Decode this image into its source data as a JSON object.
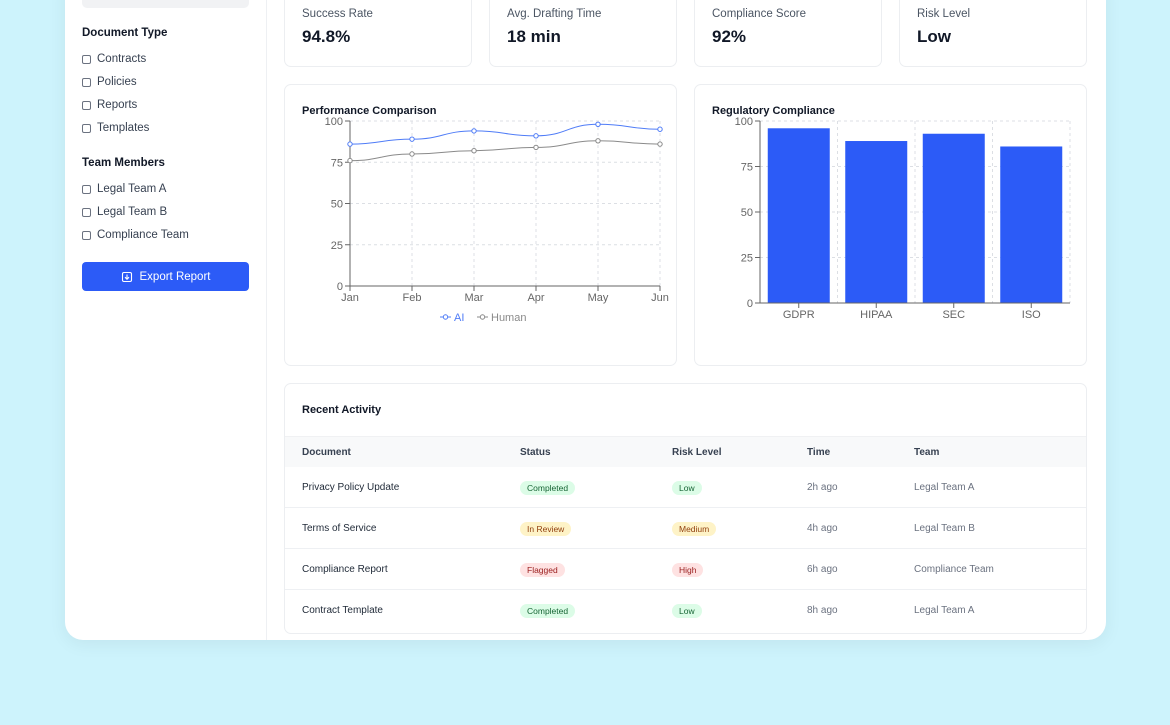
{
  "sidebar": {
    "document_type_title": "Document Type",
    "document_types": [
      "Contracts",
      "Policies",
      "Reports",
      "Templates"
    ],
    "team_members_title": "Team Members",
    "team_members": [
      "Legal Team A",
      "Legal Team B",
      "Compliance Team"
    ],
    "export_label": "Export Report"
  },
  "stats": [
    {
      "label": "Success Rate",
      "value": "94.8%"
    },
    {
      "label": "Avg. Drafting Time",
      "value": "18 min"
    },
    {
      "label": "Compliance Score",
      "value": "92%"
    },
    {
      "label": "Risk Level",
      "value": "Low"
    }
  ],
  "charts": {
    "performance_title": "Performance Comparison",
    "compliance_title": "Regulatory Compliance"
  },
  "chart_data": [
    {
      "type": "line",
      "title": "Performance Comparison",
      "categories": [
        "Jan",
        "Feb",
        "Mar",
        "Apr",
        "May",
        "Jun"
      ],
      "series": [
        {
          "name": "AI",
          "values": [
            86,
            89,
            94,
            91,
            98,
            95
          ],
          "color": "#4f7cf7"
        },
        {
          "name": "Human",
          "values": [
            76,
            80,
            82,
            84,
            88,
            86
          ],
          "color": "#8a8a8a"
        }
      ],
      "ylim": [
        0,
        100
      ],
      "yticks": [
        0,
        25,
        50,
        75,
        100
      ],
      "grid": true,
      "legend": "bottom"
    },
    {
      "type": "bar",
      "title": "Regulatory Compliance",
      "categories": [
        "GDPR",
        "HIPAA",
        "SEC",
        "ISO"
      ],
      "values": [
        96,
        89,
        93,
        86
      ],
      "color": "#2c5bf7",
      "ylim": [
        0,
        100
      ],
      "yticks": [
        0,
        25,
        50,
        75,
        100
      ],
      "grid": true
    }
  ],
  "activity": {
    "title": "Recent Activity",
    "columns": [
      "Document",
      "Status",
      "Risk Level",
      "Time",
      "Team"
    ],
    "rows": [
      {
        "document": "Privacy Policy Update",
        "status": "Completed",
        "status_color": "green",
        "risk": "Low",
        "risk_color": "green",
        "time": "2h ago",
        "team": "Legal Team A"
      },
      {
        "document": "Terms of Service",
        "status": "In Review",
        "status_color": "yellow",
        "risk": "Medium",
        "risk_color": "yellow",
        "time": "4h ago",
        "team": "Legal Team B"
      },
      {
        "document": "Compliance Report",
        "status": "Flagged",
        "status_color": "red",
        "risk": "High",
        "risk_color": "red",
        "time": "6h ago",
        "team": "Compliance Team"
      },
      {
        "document": "Contract Template",
        "status": "Completed",
        "status_color": "green",
        "risk": "Low",
        "risk_color": "green",
        "time": "8h ago",
        "team": "Legal Team A"
      }
    ]
  }
}
